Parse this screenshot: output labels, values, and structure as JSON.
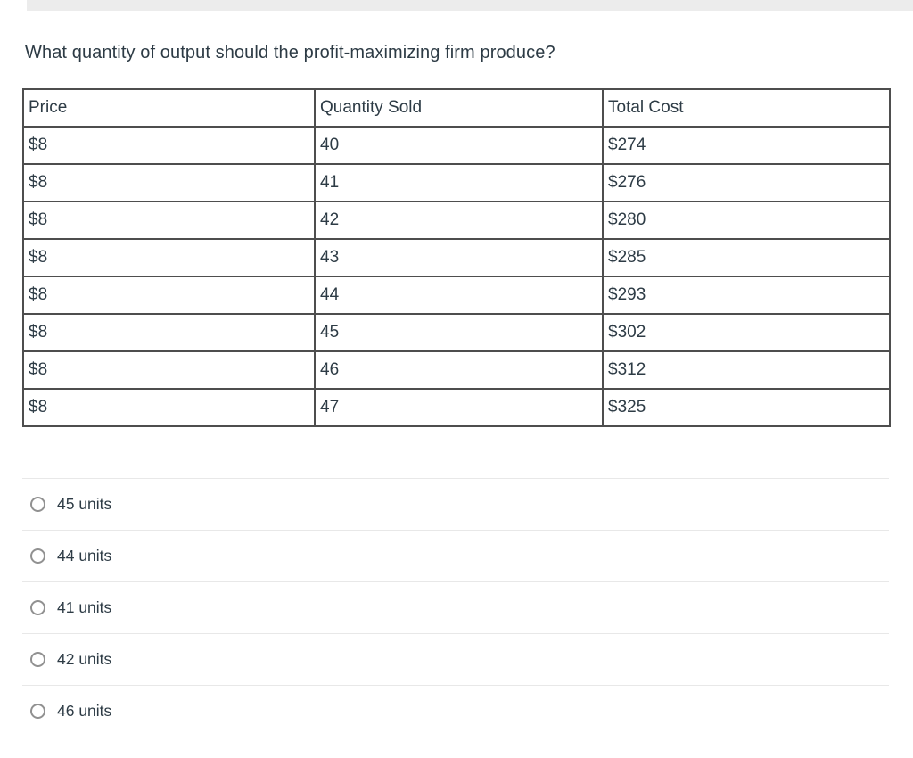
{
  "question": {
    "text": "What quantity of output should the profit-maximizing firm produce?"
  },
  "table": {
    "headers": [
      "Price",
      "Quantity Sold",
      "Total Cost"
    ],
    "rows": [
      [
        "$8",
        "40",
        "$274"
      ],
      [
        "$8",
        "41",
        "$276"
      ],
      [
        "$8",
        "42",
        "$280"
      ],
      [
        "$8",
        "43",
        "$285"
      ],
      [
        "$8",
        "44",
        "$293"
      ],
      [
        "$8",
        "45",
        "$302"
      ],
      [
        "$8",
        "46",
        "$312"
      ],
      [
        "$8",
        "47",
        "$325"
      ]
    ]
  },
  "options": [
    {
      "label": "45 units",
      "selected": false
    },
    {
      "label": "44 units",
      "selected": false
    },
    {
      "label": "41 units",
      "selected": false
    },
    {
      "label": "42 units",
      "selected": false
    },
    {
      "label": "46 units",
      "selected": false
    }
  ],
  "colors": {
    "text": "#2d3b45",
    "table_border": "#4e4e4e",
    "divider": "#e8e8e8",
    "radio_border": "#919191",
    "top_bar": "#ececec"
  }
}
